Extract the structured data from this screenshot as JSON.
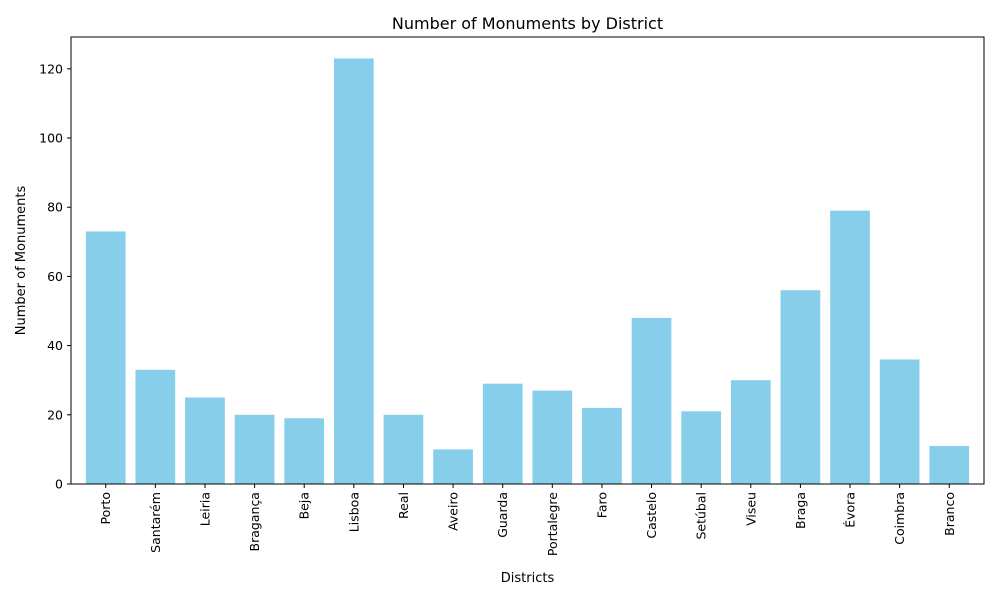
{
  "chart_data": {
    "type": "bar",
    "title": "Number of Monuments by District",
    "xlabel": "Districts",
    "ylabel": "Number of Monuments",
    "categories": [
      "Porto",
      "Santarém",
      "Leiria",
      "Bragança",
      "Beja",
      "Lisboa",
      "Real",
      "Aveiro",
      "Guarda",
      "Portalegre",
      "Faro",
      "Castelo",
      "Setúbal",
      "Viseu",
      "Braga",
      "Évora",
      "Coimbra",
      "Branco"
    ],
    "values": [
      73,
      33,
      25,
      20,
      19,
      123,
      20,
      10,
      29,
      27,
      22,
      48,
      21,
      30,
      56,
      79,
      36,
      11
    ],
    "ylim": [
      0,
      129.2
    ],
    "yticks": [
      0,
      20,
      40,
      60,
      80,
      100,
      120
    ],
    "bar_color": "#87CEEB",
    "grid": false,
    "legend": "none"
  }
}
